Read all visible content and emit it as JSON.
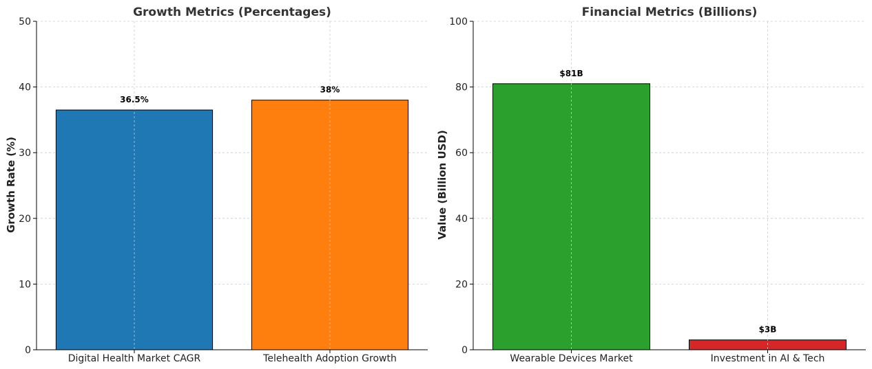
{
  "chart_data": [
    {
      "type": "bar",
      "title": "Growth Metrics (Percentages)",
      "xlabel": "",
      "ylabel": "Growth Rate (%)",
      "ylim": [
        0,
        50
      ],
      "yticks": [
        "0",
        "10",
        "20",
        "30",
        "40",
        "50"
      ],
      "grid": true,
      "categories": [
        "Digital Health Market CAGR",
        "Telehealth Adoption Growth"
      ],
      "values": [
        36.5,
        38
      ],
      "data_labels": [
        "36.5%",
        "38%"
      ],
      "colors": [
        "#1f77b4",
        "#ff7f0e"
      ]
    },
    {
      "type": "bar",
      "title": "Financial Metrics (Billions)",
      "xlabel": "",
      "ylabel": "Value (Billion USD)",
      "ylim": [
        0,
        100
      ],
      "yticks": [
        "0",
        "20",
        "40",
        "60",
        "80",
        "100"
      ],
      "grid": true,
      "categories": [
        "Wearable Devices Market",
        "Investment in AI & Tech"
      ],
      "values": [
        81,
        3
      ],
      "data_labels": [
        "$81B",
        "$3B"
      ],
      "colors": [
        "#2ca02c",
        "#d62728"
      ]
    }
  ]
}
